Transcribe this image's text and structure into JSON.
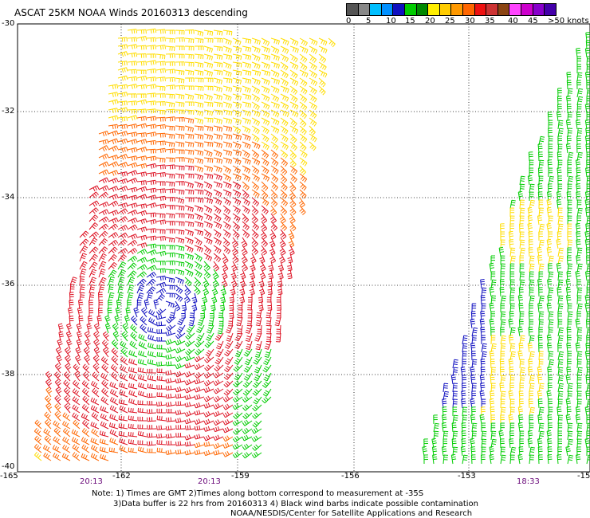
{
  "title": "ASCAT 25KM NOAA Winds 20160313 descending",
  "legend": {
    "colors": [
      "#555555",
      "#888888",
      "#00bfff",
      "#0090ff",
      "#1010c0",
      "#00cc00",
      "#008800",
      "#ffee00",
      "#ffcc00",
      "#ff9900",
      "#ff6600",
      "#ee1111",
      "#cc3333",
      "#8b4513",
      "#ff44ff",
      "#cc00cc",
      "#8800cc",
      "#4400aa"
    ],
    "labels": [
      "0",
      "5",
      "10",
      "15",
      "20",
      "25",
      "30",
      "35",
      "40",
      "45",
      ">50 knots"
    ]
  },
  "y_labels": [
    "-30",
    "-32",
    "-34",
    "-36",
    "-38",
    "-40"
  ],
  "x_labels": [
    "-165",
    "-162",
    "-159",
    "-156",
    "-153",
    "-15"
  ],
  "time_labels": [
    "20:13",
    "20:13",
    "18:33"
  ],
  "notes": [
    "Note: 1) Times are GMT 2)Times along bottom correspond to measurement at -35S",
    "3)Data buffer is 22 hrs from 20160313 4) Black wind barbs indicate possible contamination",
    "NOAA/NESDIS/Center for Satellite Applications and Research"
  ]
}
